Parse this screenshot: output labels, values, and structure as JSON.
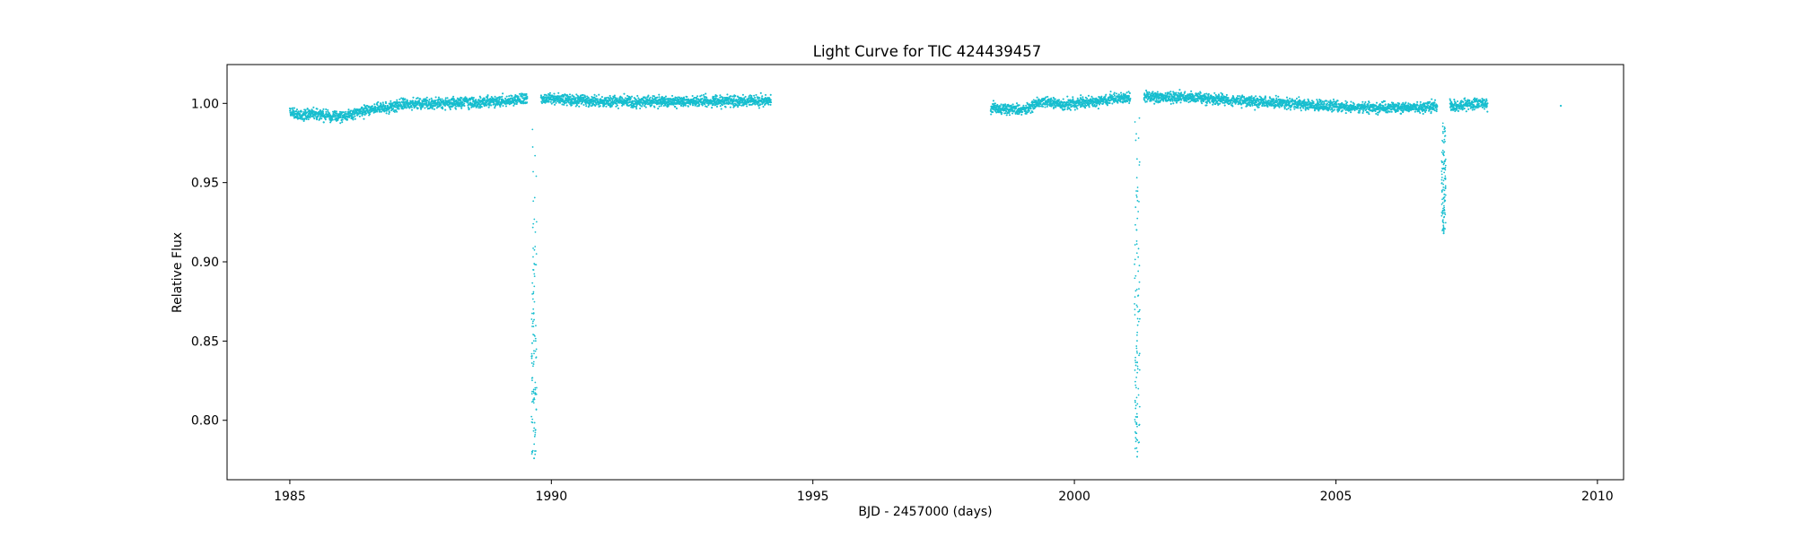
{
  "chart_data": {
    "type": "scatter",
    "title": "Light Curve for TIC 424439457",
    "xlabel": "BJD - 2457000 (days)",
    "ylabel": "Relative Flux",
    "xlim": [
      1983.8,
      2010.5
    ],
    "ylim": [
      0.7625,
      1.0245
    ],
    "xticks": [
      1985,
      1990,
      1995,
      2000,
      2005,
      2010
    ],
    "xtick_labels": [
      "1985",
      "1990",
      "1995",
      "2000",
      "2005",
      "2010"
    ],
    "yticks": [
      0.8,
      0.85,
      0.9,
      0.95,
      1.0
    ],
    "ytick_labels": [
      "0.80",
      "0.85",
      "0.90",
      "0.95",
      "1.00"
    ],
    "grid": false,
    "legend": "none",
    "marker_color": "#17becf",
    "series": [
      {
        "baseline": [
          {
            "x": 1985.0,
            "y": 0.9945
          },
          {
            "x": 1985.2,
            "y": 0.9925
          },
          {
            "x": 1985.5,
            "y": 0.9935
          },
          {
            "x": 1985.8,
            "y": 0.9915
          },
          {
            "x": 1986.1,
            "y": 0.9925
          },
          {
            "x": 1986.4,
            "y": 0.995
          },
          {
            "x": 1986.8,
            "y": 0.9975
          },
          {
            "x": 1987.2,
            "y": 0.9995
          },
          {
            "x": 1988.0,
            "y": 1.0
          },
          {
            "x": 1989.0,
            "y": 1.001
          },
          {
            "x": 1989.6,
            "y": 1.0035
          },
          {
            "x": 1990.0,
            "y": 1.003
          },
          {
            "x": 1991.0,
            "y": 1.001
          },
          {
            "x": 1992.0,
            "y": 1.001
          },
          {
            "x": 1993.0,
            "y": 1.001
          },
          {
            "x": 1994.2,
            "y": 1.002
          }
        ],
        "dips": [
          {
            "x_start": 1989.62,
            "x_end": 1989.72,
            "min_y": 0.776
          }
        ]
      },
      {
        "baseline": [
          {
            "x": 1998.4,
            "y": 0.997
          },
          {
            "x": 1999.0,
            "y": 0.996
          },
          {
            "x": 1999.4,
            "y": 1.001
          },
          {
            "x": 1999.8,
            "y": 0.999
          },
          {
            "x": 2000.5,
            "y": 1.002
          },
          {
            "x": 2001.2,
            "y": 1.004
          },
          {
            "x": 2002.0,
            "y": 1.004
          },
          {
            "x": 2003.0,
            "y": 1.002
          },
          {
            "x": 2004.0,
            "y": 1.0
          },
          {
            "x": 2005.0,
            "y": 0.998
          },
          {
            "x": 2006.0,
            "y": 0.997
          },
          {
            "x": 2007.0,
            "y": 0.998
          },
          {
            "x": 2007.9,
            "y": 1.0
          }
        ],
        "dips": [
          {
            "x_start": 2001.15,
            "x_end": 2001.25,
            "min_y": 0.777
          },
          {
            "x_start": 2007.02,
            "x_end": 2007.1,
            "min_y": 0.918
          }
        ]
      }
    ],
    "isolated_points": [
      {
        "x": 2009.3,
        "y": 0.9985
      }
    ]
  }
}
